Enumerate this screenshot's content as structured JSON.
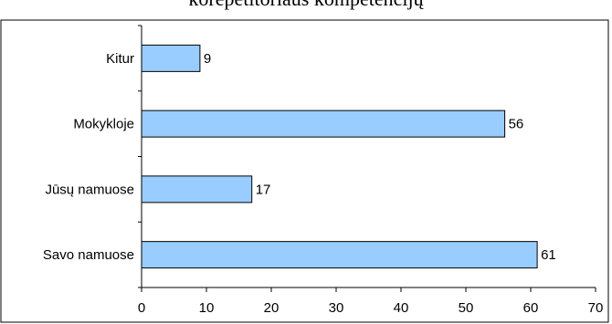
{
  "chart_data": {
    "type": "bar",
    "orientation": "horizontal",
    "title": "korepetitoriaus kompetencijų",
    "categories": [
      "Kitur",
      "Mokykloje",
      "Jūsų namuose",
      "Savo namuose"
    ],
    "values": [
      9,
      56,
      17,
      61
    ],
    "xlim": [
      0,
      70
    ],
    "xticks": [
      0,
      10,
      20,
      30,
      40,
      50,
      60,
      70
    ],
    "grid": false,
    "legend": "none",
    "bar_color": "#99ccff",
    "bar_edge_color": "#000000"
  }
}
